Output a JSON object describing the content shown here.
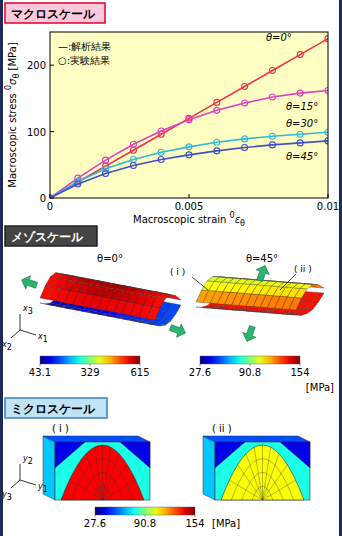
{
  "sections": {
    "macro": "マクロスケール",
    "meso": "メゾスケール",
    "micro": "ミクロスケール"
  },
  "chart_data": {
    "type": "line",
    "x_label": {
      "text": "Macroscopic strain ",
      "sup": "0",
      "sym": "ε",
      "sub": "θ"
    },
    "y_label": {
      "text": "Macroscopic stress ",
      "sup": "0",
      "sym": "σ",
      "sub": "θ",
      "unit": " [MPa]"
    },
    "annotations": [
      "—:解析結果",
      "○:実験結果"
    ],
    "x": [
      0,
      0.001,
      0.002,
      0.003,
      0.004,
      0.005,
      0.006,
      0.007,
      0.008,
      0.009,
      0.01
    ],
    "xlim": [
      0,
      0.01
    ],
    "xticks": [
      0,
      0.005,
      0.01
    ],
    "ylim": [
      0,
      250
    ],
    "yticks": [
      0,
      100,
      200
    ],
    "series": [
      {
        "name": "θ=0°",
        "color": "#f0304a",
        "marker": "circle",
        "line_style": "solid",
        "values": [
          0,
          24,
          48,
          72,
          96,
          120,
          144,
          168,
          192,
          216,
          240
        ]
      },
      {
        "name": "θ=15°",
        "color": "#e040c0",
        "marker": "circle",
        "line_style": "solid",
        "values": [
          0,
          30,
          57,
          81,
          101,
          118,
          132,
          143,
          152,
          158,
          162
        ]
      },
      {
        "name": "θ=30°",
        "color": "#30b8d8",
        "marker": "circle",
        "line_style": "solid",
        "values": [
          0,
          25,
          44,
          58,
          69,
          77,
          84,
          89,
          93,
          96,
          99
        ]
      },
      {
        "name": "θ=45°",
        "color": "#4050c8",
        "marker": "circle",
        "line_style": "solid",
        "values": [
          0,
          21,
          37,
          49,
          58,
          65,
          71,
          76,
          80,
          83,
          86
        ]
      }
    ]
  },
  "meso": {
    "panels": [
      {
        "title": "θ=0°",
        "colorbar": {
          "range": [
            43.1,
            615
          ],
          "ticks": [
            43.1,
            329,
            615
          ]
        }
      },
      {
        "title": "θ=45°",
        "callouts": [
          "( i )",
          "( ii )"
        ],
        "colorbar": {
          "range": [
            27.6,
            154
          ],
          "ticks": [
            27.6,
            90.8,
            154
          ]
        }
      }
    ],
    "unit": "[MPa]",
    "triad": [
      {
        "sym": "x",
        "sub": "3"
      },
      {
        "sym": "x",
        "sub": "1"
      },
      {
        "sym": "x",
        "sub": "2"
      }
    ]
  },
  "micro": {
    "panels": [
      {
        "title": "( i )"
      },
      {
        "title": "( ii )"
      }
    ],
    "colorbar": {
      "range": [
        27.6,
        154
      ],
      "ticks": [
        27.6,
        90.8,
        154
      ]
    },
    "unit": "[MPa]",
    "triad": [
      {
        "sym": "y",
        "sub": "2"
      },
      {
        "sym": "y",
        "sub": "1"
      },
      {
        "sym": "y",
        "sub": "3"
      }
    ]
  }
}
